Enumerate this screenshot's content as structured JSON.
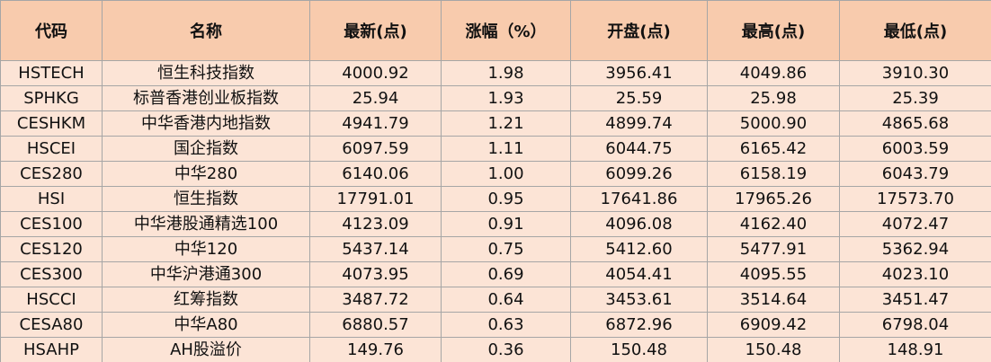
{
  "table": {
    "header": [
      "代码",
      "名称",
      "最新(点)",
      "涨幅（%）",
      "开盘(点)",
      "最高(点)",
      "最低(点)"
    ],
    "rows": [
      [
        "HSTECH",
        "恒生科技指数",
        "4000.92",
        "1.98",
        "3956.41",
        "4049.86",
        "3910.30"
      ],
      [
        "SPHKG",
        "标普香港创业板指数",
        "25.94",
        "1.93",
        "25.59",
        "25.98",
        "25.39"
      ],
      [
        "CESHKM",
        "中华香港内地指数",
        "4941.79",
        "1.21",
        "4899.74",
        "5000.90",
        "4865.68"
      ],
      [
        "HSCEI",
        "国企指数",
        "6097.59",
        "1.11",
        "6044.75",
        "6165.42",
        "6003.59"
      ],
      [
        "CES280",
        "中华280",
        "6140.06",
        "1.00",
        "6099.26",
        "6158.19",
        "6043.79"
      ],
      [
        "HSI",
        "恒生指数",
        "17791.01",
        "0.95",
        "17641.86",
        "17965.26",
        "17573.70"
      ],
      [
        "CES100",
        "中华港股通精选100",
        "4123.09",
        "0.91",
        "4096.08",
        "4162.40",
        "4072.47"
      ],
      [
        "CES120",
        "中华120",
        "5437.14",
        "0.75",
        "5412.60",
        "5477.91",
        "5362.94"
      ],
      [
        "CES300",
        "中华沪港通300",
        "4073.95",
        "0.69",
        "4054.41",
        "4095.55",
        "4023.10"
      ],
      [
        "HSCCI",
        "红筹指数",
        "3487.72",
        "0.64",
        "3453.61",
        "3514.64",
        "3451.47"
      ],
      [
        "CESA80",
        "中华A80",
        "6880.57",
        "0.63",
        "6872.96",
        "6909.42",
        "6798.04"
      ],
      [
        "HSAHP",
        "AH股溢价",
        "149.76",
        "0.36",
        "150.48",
        "150.48",
        "148.91"
      ]
    ]
  }
}
